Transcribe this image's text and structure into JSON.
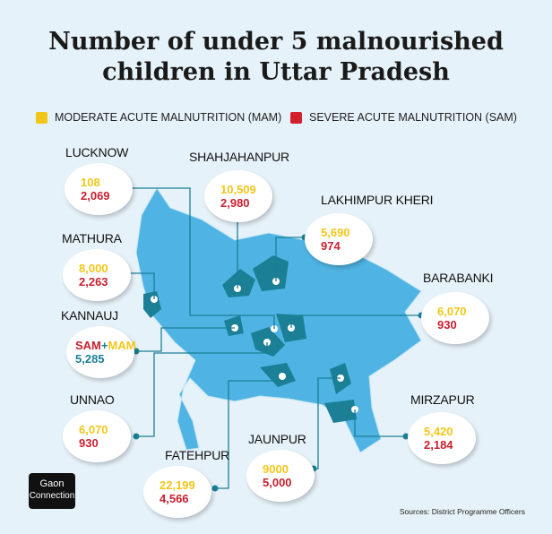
{
  "title_line1": "Number of under 5 malnourished",
  "title_line2": "children in Uttar Pradesh",
  "legend": [
    {
      "label": "MODERATE ACUTE MALNUTRITION (MAM)",
      "color": "#f2c618"
    },
    {
      "label": "SEVERE ACUTE MALNUTRITION (SAM)",
      "color": "#d4202c"
    }
  ],
  "districts": [
    {
      "name": "LUCKNOW",
      "mam": "108",
      "sam": "2,069"
    },
    {
      "name": "SHAHJAHANPUR",
      "mam": "10,509",
      "sam": "2,980"
    },
    {
      "name": "LAKHIMPUR KHERI",
      "mam": "5,690",
      "sam": "974"
    },
    {
      "name": "MATHURA",
      "mam": "8,000",
      "sam": "2,263"
    },
    {
      "name": "BARABANKI",
      "mam": "6,070",
      "sam": "930"
    },
    {
      "name": "KANNAUJ",
      "sam_label": "SAM",
      "plus": "+",
      "mam_label": "MAM",
      "total": "5,285"
    },
    {
      "name": "UNNAO",
      "mam": "6,070",
      "sam": "930"
    },
    {
      "name": "FATEHPUR",
      "mam": "22,199",
      "sam": "4,566"
    },
    {
      "name": "JAUNPUR",
      "mam": "9000",
      "sam": "5,000"
    },
    {
      "name": "MIRZAPUR",
      "mam": "5,420",
      "sam": "2,184"
    }
  ],
  "logo": {
    "line1": "Gaon",
    "line2": "Connection"
  },
  "source": "Sources: District Programme Officers",
  "colors": {
    "map": "#4fb3e3",
    "highlight": "#1b7f95",
    "connector": "#1b7f95",
    "background": "#e6f2f9"
  }
}
